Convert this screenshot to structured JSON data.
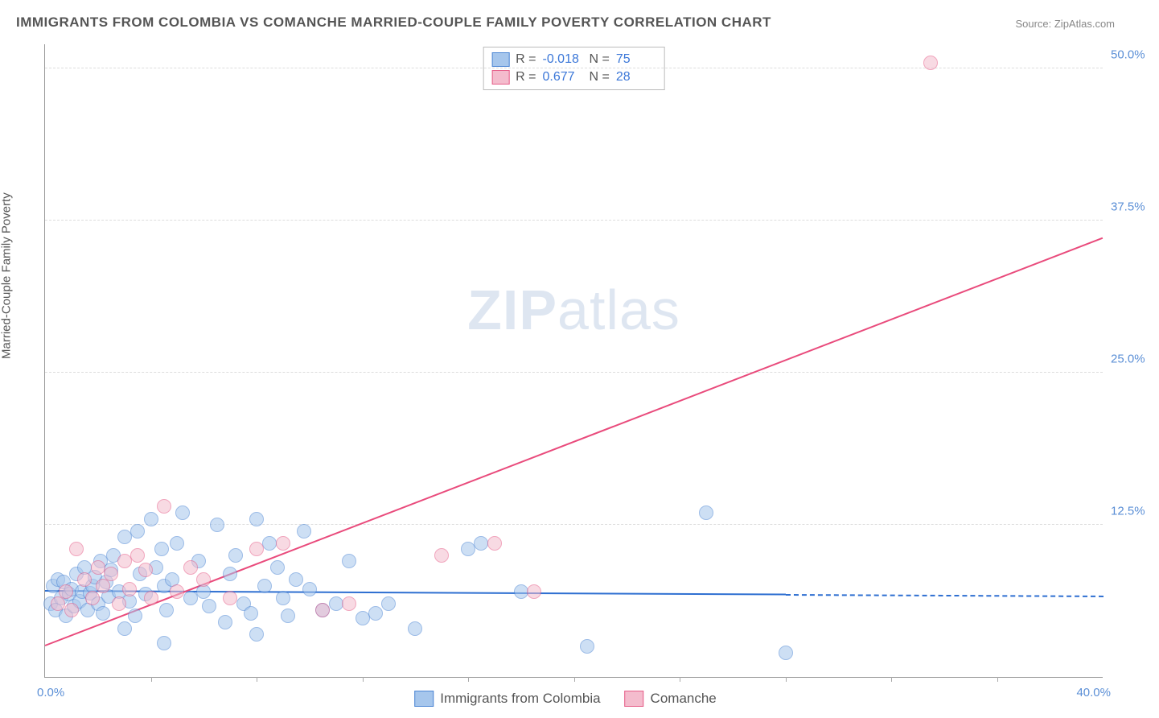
{
  "title": "IMMIGRANTS FROM COLOMBIA VS COMANCHE MARRIED-COUPLE FAMILY POVERTY CORRELATION CHART",
  "source": "Source: ZipAtlas.com",
  "watermark_bold": "ZIP",
  "watermark_rest": "atlas",
  "y_axis_title": "Married-Couple Family Poverty",
  "chart": {
    "type": "scatter",
    "xlim": [
      0,
      40
    ],
    "ylim": [
      0,
      52
    ],
    "x_min_label": "0.0%",
    "x_max_label": "40.0%",
    "y_ticks": [
      {
        "v": 12.5,
        "label": "12.5%"
      },
      {
        "v": 25.0,
        "label": "25.0%"
      },
      {
        "v": 37.5,
        "label": "37.5%"
      },
      {
        "v": 50.0,
        "label": "50.0%"
      }
    ],
    "x_tick_step": 4,
    "background_color": "#ffffff",
    "grid_color": "#dddddd",
    "series": [
      {
        "name": "Immigrants from Colombia",
        "fill": "#a6c6ec",
        "stroke": "#4d86d4",
        "trend_color": "#2e6fd1",
        "marker_radius": 9,
        "fill_opacity": 0.55,
        "R": "-0.018",
        "N": "75",
        "trend": {
          "x1": 0,
          "y1": 7.0,
          "x2": 28,
          "y2": 6.7,
          "dash_to_x": 40
        },
        "points": [
          [
            0.2,
            6.0
          ],
          [
            0.3,
            7.5
          ],
          [
            0.4,
            5.5
          ],
          [
            0.5,
            8.0
          ],
          [
            0.6,
            6.5
          ],
          [
            0.7,
            7.8
          ],
          [
            0.8,
            5.0
          ],
          [
            0.9,
            6.8
          ],
          [
            1.0,
            7.2
          ],
          [
            1.1,
            5.8
          ],
          [
            1.2,
            8.5
          ],
          [
            1.3,
            6.2
          ],
          [
            1.4,
            7.0
          ],
          [
            1.5,
            9.0
          ],
          [
            1.6,
            5.5
          ],
          [
            1.7,
            6.9
          ],
          [
            1.8,
            7.5
          ],
          [
            1.9,
            8.2
          ],
          [
            2.0,
            6.0
          ],
          [
            2.1,
            9.5
          ],
          [
            2.2,
            5.2
          ],
          [
            2.3,
            7.8
          ],
          [
            2.4,
            6.6
          ],
          [
            2.5,
            8.8
          ],
          [
            2.6,
            10.0
          ],
          [
            2.8,
            7.0
          ],
          [
            3.0,
            11.5
          ],
          [
            3.2,
            6.2
          ],
          [
            3.4,
            5.0
          ],
          [
            3.5,
            12.0
          ],
          [
            3.6,
            8.5
          ],
          [
            3.8,
            6.8
          ],
          [
            4.0,
            13.0
          ],
          [
            4.2,
            9.0
          ],
          [
            4.4,
            10.5
          ],
          [
            4.5,
            7.5
          ],
          [
            4.6,
            5.5
          ],
          [
            4.8,
            8.0
          ],
          [
            5.0,
            11.0
          ],
          [
            5.2,
            13.5
          ],
          [
            5.5,
            6.5
          ],
          [
            5.8,
            9.5
          ],
          [
            6.0,
            7.0
          ],
          [
            6.2,
            5.8
          ],
          [
            6.5,
            12.5
          ],
          [
            6.8,
            4.5
          ],
          [
            7.0,
            8.5
          ],
          [
            7.2,
            10.0
          ],
          [
            7.5,
            6.0
          ],
          [
            7.8,
            5.2
          ],
          [
            8.0,
            13.0
          ],
          [
            8.3,
            7.5
          ],
          [
            8.5,
            11.0
          ],
          [
            8.8,
            9.0
          ],
          [
            9.0,
            6.5
          ],
          [
            9.2,
            5.0
          ],
          [
            9.5,
            8.0
          ],
          [
            9.8,
            12.0
          ],
          [
            10.0,
            7.2
          ],
          [
            10.5,
            5.5
          ],
          [
            11.0,
            6.0
          ],
          [
            11.5,
            9.5
          ],
          [
            12.0,
            4.8
          ],
          [
            12.5,
            5.2
          ],
          [
            13.0,
            6.0
          ],
          [
            14.0,
            4.0
          ],
          [
            16.0,
            10.5
          ],
          [
            16.5,
            11.0
          ],
          [
            18.0,
            7.0
          ],
          [
            20.5,
            2.5
          ],
          [
            25.0,
            13.5
          ],
          [
            28.0,
            2.0
          ],
          [
            4.5,
            2.8
          ],
          [
            8.0,
            3.5
          ],
          [
            3.0,
            4.0
          ]
        ]
      },
      {
        "name": "Comanche",
        "fill": "#f4bccd",
        "stroke": "#e65d88",
        "trend_color": "#e94b7c",
        "marker_radius": 9,
        "fill_opacity": 0.55,
        "R": "0.677",
        "N": "28",
        "trend": {
          "x1": 0,
          "y1": 2.5,
          "x2": 40,
          "y2": 36.0
        },
        "points": [
          [
            0.5,
            6.0
          ],
          [
            0.8,
            7.0
          ],
          [
            1.0,
            5.5
          ],
          [
            1.2,
            10.5
          ],
          [
            1.5,
            8.0
          ],
          [
            1.8,
            6.5
          ],
          [
            2.0,
            9.0
          ],
          [
            2.2,
            7.5
          ],
          [
            2.5,
            8.5
          ],
          [
            2.8,
            6.0
          ],
          [
            3.0,
            9.5
          ],
          [
            3.2,
            7.2
          ],
          [
            3.5,
            10.0
          ],
          [
            3.8,
            8.8
          ],
          [
            4.0,
            6.5
          ],
          [
            4.5,
            14.0
          ],
          [
            5.0,
            7.0
          ],
          [
            5.5,
            9.0
          ],
          [
            6.0,
            8.0
          ],
          [
            7.0,
            6.5
          ],
          [
            8.0,
            10.5
          ],
          [
            9.0,
            11.0
          ],
          [
            10.5,
            5.5
          ],
          [
            11.5,
            6.0
          ],
          [
            15.0,
            10.0
          ],
          [
            17.0,
            11.0
          ],
          [
            18.5,
            7.0
          ],
          [
            33.5,
            50.5
          ]
        ]
      }
    ]
  },
  "legend": {
    "s1_label": "Immigrants from Colombia",
    "s2_label": "Comanche"
  }
}
